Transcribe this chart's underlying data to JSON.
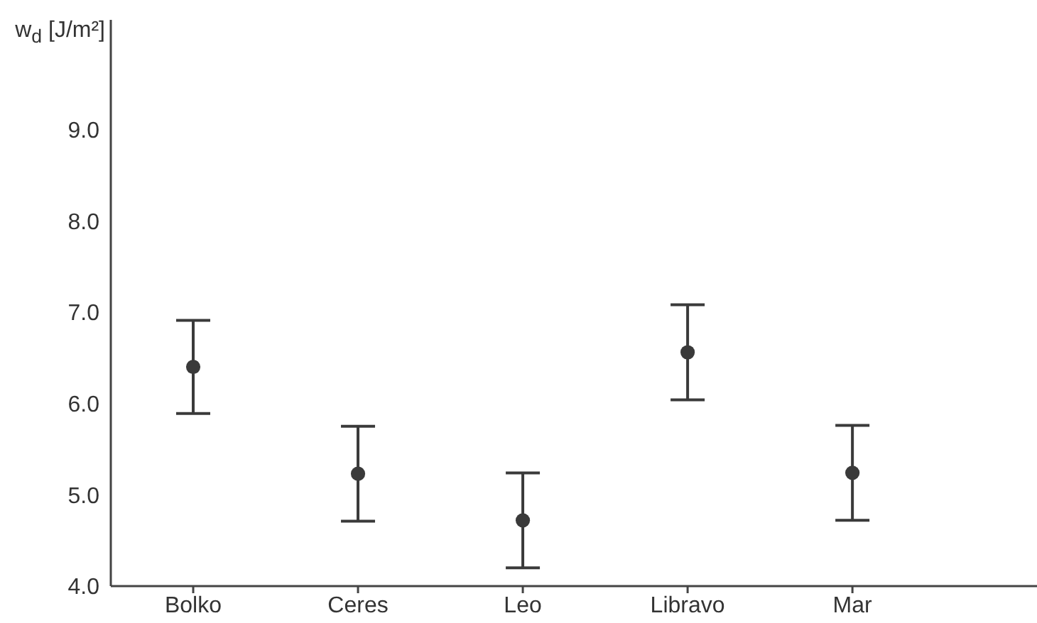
{
  "chart_data": {
    "type": "scatter",
    "ylabel": "w$_{d}$ [J/m²]",
    "categories": [
      "Bolko",
      "Ceres",
      "Leo",
      "Libravo",
      "Mar"
    ],
    "values": [
      6.4,
      5.23,
      4.72,
      6.56,
      5.24
    ],
    "errors": [
      0.51,
      0.52,
      0.52,
      0.52,
      0.52
    ],
    "color": "#3a3a3a",
    "marker": "circle",
    "ylim": [
      4,
      10.2
    ],
    "yticks": [
      {
        "value": 4,
        "label": "4.0"
      },
      {
        "value": 5,
        "label": "5.0"
      },
      {
        "value": 6,
        "label": "6.0"
      },
      {
        "value": 7,
        "label": "7.0"
      },
      {
        "value": 8,
        "label": "8.0"
      },
      {
        "value": 9,
        "label": "9.0"
      }
    ]
  }
}
